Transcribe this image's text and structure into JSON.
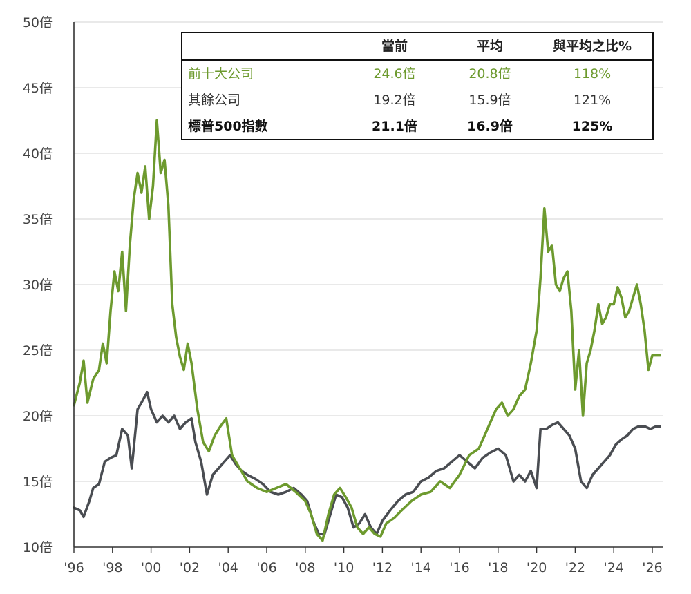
{
  "chart_data": {
    "type": "line",
    "ylim": [
      10,
      50
    ],
    "yticks": [
      {
        "v": 50,
        "label": "50倍"
      },
      {
        "v": 45,
        "label": "45倍"
      },
      {
        "v": 40,
        "label": "40倍"
      },
      {
        "v": 35,
        "label": "35倍"
      },
      {
        "v": 30,
        "label": "30倍"
      },
      {
        "v": 25,
        "label": "25倍"
      },
      {
        "v": 20,
        "label": "20倍"
      },
      {
        "v": 15,
        "label": "15倍"
      },
      {
        "v": 10,
        "label": "10倍"
      }
    ],
    "xlim": [
      1996,
      2026.5
    ],
    "xticks": [
      {
        "v": 1996,
        "label": "'96"
      },
      {
        "v": 1998,
        "label": "'98"
      },
      {
        "v": 2000,
        "label": "'00"
      },
      {
        "v": 2002,
        "label": "'02"
      },
      {
        "v": 2004,
        "label": "'04"
      },
      {
        "v": 2006,
        "label": "'06"
      },
      {
        "v": 2008,
        "label": "'08"
      },
      {
        "v": 2010,
        "label": "'10"
      },
      {
        "v": 2012,
        "label": "'12"
      },
      {
        "v": 2014,
        "label": "'14"
      },
      {
        "v": 2016,
        "label": "'16"
      },
      {
        "v": 2018,
        "label": "'18"
      },
      {
        "v": 2020,
        "label": "'20"
      },
      {
        "v": 2022,
        "label": "'22"
      },
      {
        "v": 2024,
        "label": "'24"
      },
      {
        "v": 2026,
        "label": "'26"
      }
    ],
    "grid": true,
    "series": [
      {
        "name": "前十大公司",
        "color": "#6d9a2e",
        "x": [
          1996.0,
          1996.3,
          1996.5,
          1996.7,
          1997.0,
          1997.3,
          1997.5,
          1997.7,
          1997.9,
          1998.1,
          1998.3,
          1998.5,
          1998.7,
          1998.9,
          1999.1,
          1999.3,
          1999.5,
          1999.7,
          1999.9,
          2000.1,
          2000.3,
          2000.5,
          2000.7,
          2000.9,
          2001.1,
          2001.3,
          2001.5,
          2001.7,
          2001.9,
          2002.1,
          2002.4,
          2002.7,
          2003.0,
          2003.3,
          2003.6,
          2003.9,
          2004.2,
          2004.6,
          2005.0,
          2005.5,
          2006.0,
          2006.5,
          2007.0,
          2007.5,
          2008.0,
          2008.3,
          2008.6,
          2008.9,
          2009.2,
          2009.5,
          2009.8,
          2010.1,
          2010.4,
          2010.7,
          2011.0,
          2011.3,
          2011.6,
          2011.9,
          2012.2,
          2012.6,
          2013.0,
          2013.5,
          2014.0,
          2014.5,
          2015.0,
          2015.5,
          2016.0,
          2016.5,
          2017.0,
          2017.3,
          2017.6,
          2017.9,
          2018.2,
          2018.5,
          2018.8,
          2019.1,
          2019.4,
          2019.7,
          2020.0,
          2020.2,
          2020.4,
          2020.6,
          2020.8,
          2021.0,
          2021.2,
          2021.4,
          2021.6,
          2021.8,
          2022.0,
          2022.2,
          2022.4,
          2022.6,
          2022.8,
          2023.0,
          2023.2,
          2023.4,
          2023.6,
          2023.8,
          2024.0,
          2024.2,
          2024.4,
          2024.6,
          2024.8,
          2025.0,
          2025.2,
          2025.4,
          2025.6,
          2025.8,
          2026.0,
          2026.2,
          2026.4
        ],
        "values": [
          20.8,
          22.5,
          24.2,
          21.0,
          22.8,
          23.5,
          25.5,
          24.0,
          28.0,
          31.0,
          29.5,
          32.5,
          28.0,
          33.0,
          36.5,
          38.5,
          37.0,
          39.0,
          35.0,
          37.5,
          42.5,
          38.5,
          39.5,
          36.0,
          28.5,
          26.0,
          24.5,
          23.5,
          25.5,
          24.0,
          20.5,
          18.0,
          17.3,
          18.5,
          19.2,
          19.8,
          17.0,
          16.0,
          15.0,
          14.5,
          14.2,
          14.5,
          14.8,
          14.2,
          13.5,
          12.5,
          11.0,
          10.5,
          12.5,
          14.0,
          14.5,
          13.8,
          13.0,
          11.5,
          11.0,
          11.5,
          11.0,
          10.8,
          11.8,
          12.2,
          12.8,
          13.5,
          14.0,
          14.2,
          15.0,
          14.5,
          15.5,
          17.0,
          17.5,
          18.5,
          19.5,
          20.5,
          21.0,
          20.0,
          20.5,
          21.5,
          22.0,
          24.0,
          26.5,
          30.5,
          35.8,
          32.5,
          33.0,
          30.0,
          29.5,
          30.5,
          31.0,
          28.0,
          22.0,
          25.0,
          20.0,
          24.0,
          25.0,
          26.5,
          28.5,
          27.0,
          27.5,
          28.5,
          28.5,
          29.8,
          29.0,
          27.5,
          28.0,
          29.0,
          30.0,
          28.5,
          26.5,
          23.5,
          24.6,
          24.6,
          24.6
        ]
      },
      {
        "name": "其餘公司",
        "color": "#4a4d52",
        "x": [
          1996.0,
          1996.3,
          1996.5,
          1996.8,
          1997.0,
          1997.3,
          1997.6,
          1997.9,
          1998.2,
          1998.5,
          1998.8,
          1999.0,
          1999.3,
          1999.5,
          1999.8,
          2000.0,
          2000.3,
          2000.6,
          2000.9,
          2001.2,
          2001.5,
          2001.8,
          2002.1,
          2002.3,
          2002.6,
          2002.9,
          2003.2,
          2003.5,
          2003.8,
          2004.1,
          2004.4,
          2004.7,
          2005.0,
          2005.4,
          2005.8,
          2006.2,
          2006.6,
          2007.0,
          2007.4,
          2007.8,
          2008.1,
          2008.4,
          2008.7,
          2009.0,
          2009.3,
          2009.6,
          2009.9,
          2010.2,
          2010.5,
          2010.8,
          2011.1,
          2011.4,
          2011.7,
          2012.0,
          2012.4,
          2012.8,
          2013.2,
          2013.6,
          2014.0,
          2014.4,
          2014.8,
          2015.2,
          2015.6,
          2016.0,
          2016.4,
          2016.8,
          2017.2,
          2017.6,
          2018.0,
          2018.4,
          2018.8,
          2019.1,
          2019.4,
          2019.7,
          2020.0,
          2020.2,
          2020.5,
          2020.8,
          2021.1,
          2021.4,
          2021.7,
          2022.0,
          2022.3,
          2022.6,
          2022.9,
          2023.2,
          2023.5,
          2023.8,
          2024.1,
          2024.4,
          2024.7,
          2025.0,
          2025.3,
          2025.6,
          2025.9,
          2026.2,
          2026.4
        ],
        "values": [
          13.0,
          12.8,
          12.3,
          13.5,
          14.5,
          14.8,
          16.5,
          16.8,
          17.0,
          19.0,
          18.5,
          16.0,
          20.5,
          21.0,
          21.8,
          20.5,
          19.5,
          20.0,
          19.5,
          20.0,
          19.0,
          19.5,
          19.8,
          18.0,
          16.5,
          14.0,
          15.5,
          16.0,
          16.5,
          17.0,
          16.3,
          15.8,
          15.5,
          15.2,
          14.8,
          14.2,
          14.0,
          14.2,
          14.5,
          14.0,
          13.5,
          12.0,
          11.0,
          11.0,
          12.5,
          14.0,
          13.8,
          13.0,
          11.5,
          11.8,
          12.5,
          11.5,
          11.0,
          12.0,
          12.8,
          13.5,
          14.0,
          14.2,
          15.0,
          15.3,
          15.8,
          16.0,
          16.5,
          17.0,
          16.5,
          16.0,
          16.8,
          17.2,
          17.5,
          17.0,
          15.0,
          15.5,
          15.0,
          15.8,
          14.5,
          19.0,
          19.0,
          19.3,
          19.5,
          19.0,
          18.5,
          17.5,
          15.0,
          14.5,
          15.5,
          16.0,
          16.5,
          17.0,
          17.8,
          18.2,
          18.5,
          19.0,
          19.2,
          19.2,
          19.0,
          19.2,
          19.2
        ]
      }
    ],
    "table": {
      "headers": [
        "",
        "當前",
        "平均",
        "與平均之比%"
      ],
      "rows": [
        {
          "label": "前十大公司",
          "current": "24.6倍",
          "average": "20.8倍",
          "ratio": "118%"
        },
        {
          "label": "其餘公司",
          "current": "19.2倍",
          "average": "15.9倍",
          "ratio": "121%"
        },
        {
          "label": "標普500指數",
          "current": "21.1倍",
          "average": "16.9倍",
          "ratio": "125%"
        }
      ]
    }
  }
}
